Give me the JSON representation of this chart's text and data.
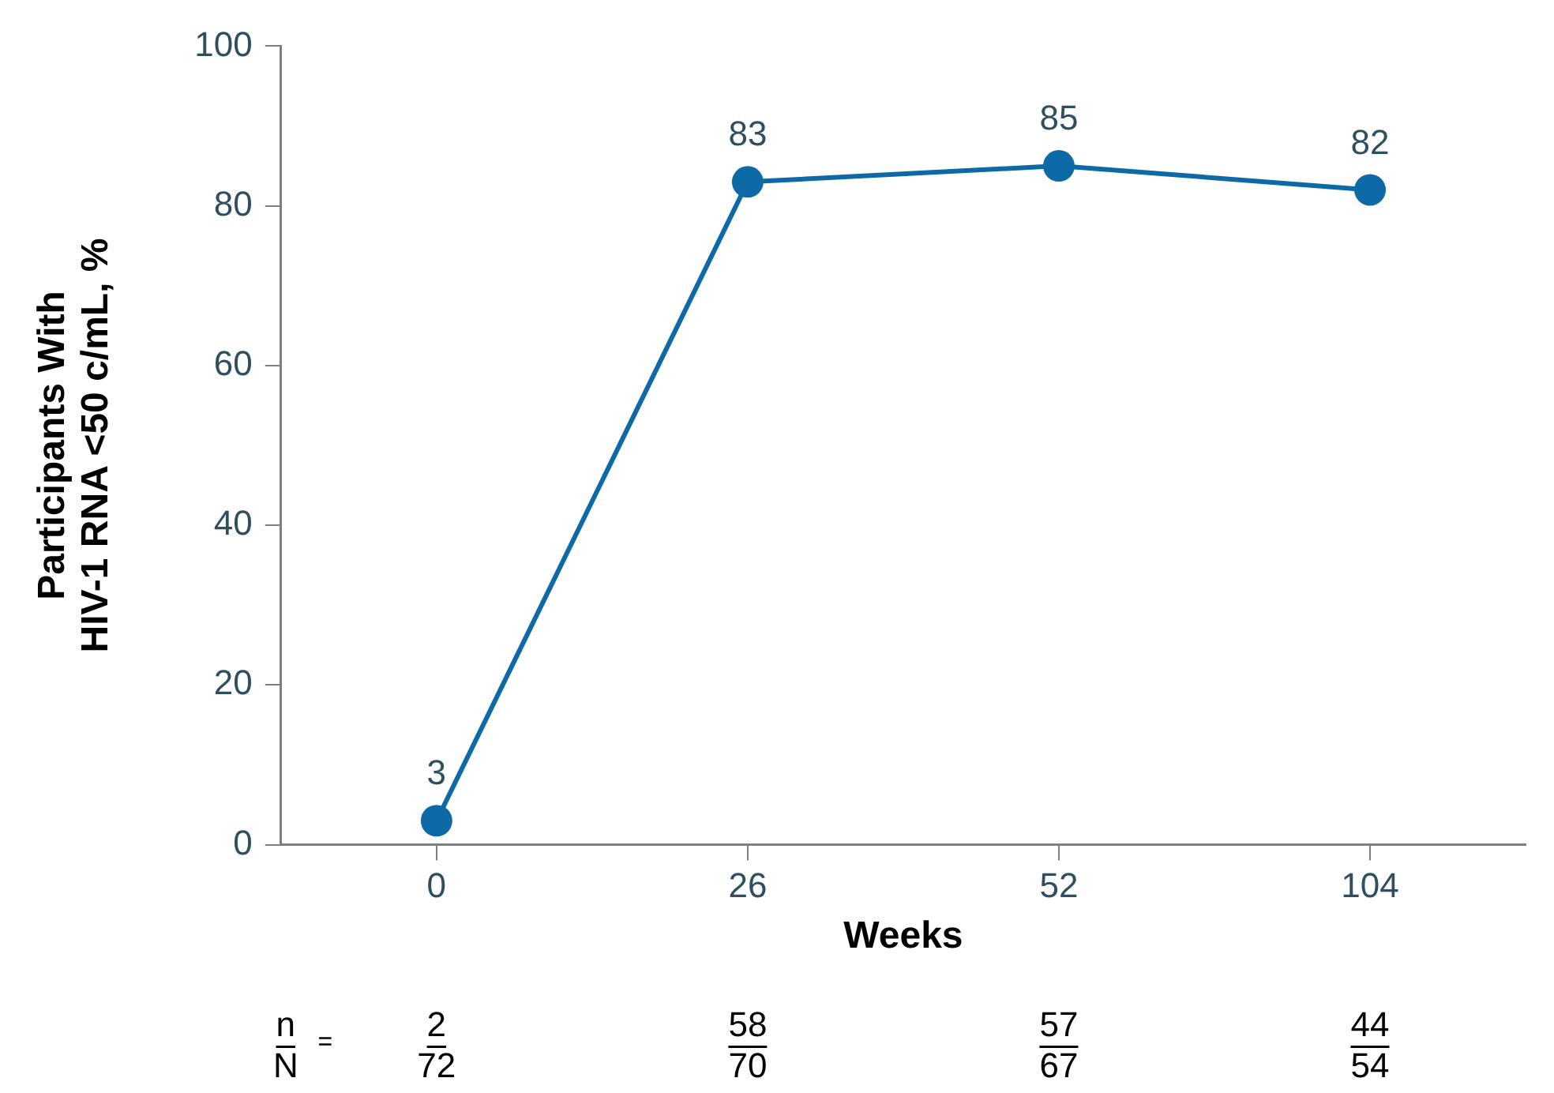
{
  "chart_data": {
    "type": "line",
    "xlabel": "Weeks",
    "ylabel": "Participants With\nHIV-1 RNA <50 c/mL, %",
    "categories": [
      "0",
      "26",
      "52",
      "104"
    ],
    "series": [
      {
        "color": "#0e6aa6",
        "values": [
          3,
          83,
          85,
          82
        ]
      }
    ],
    "ylim": [
      0,
      100
    ],
    "yticks": [
      0,
      20,
      40,
      60,
      80,
      100
    ],
    "grid": false,
    "legend": false,
    "marker": "circle",
    "line_style": "solid",
    "data_labels": true,
    "annotations": [
      "n",
      "N",
      "=",
      "2",
      "72",
      "58",
      "70",
      "57",
      "67",
      "44",
      "54"
    ]
  }
}
